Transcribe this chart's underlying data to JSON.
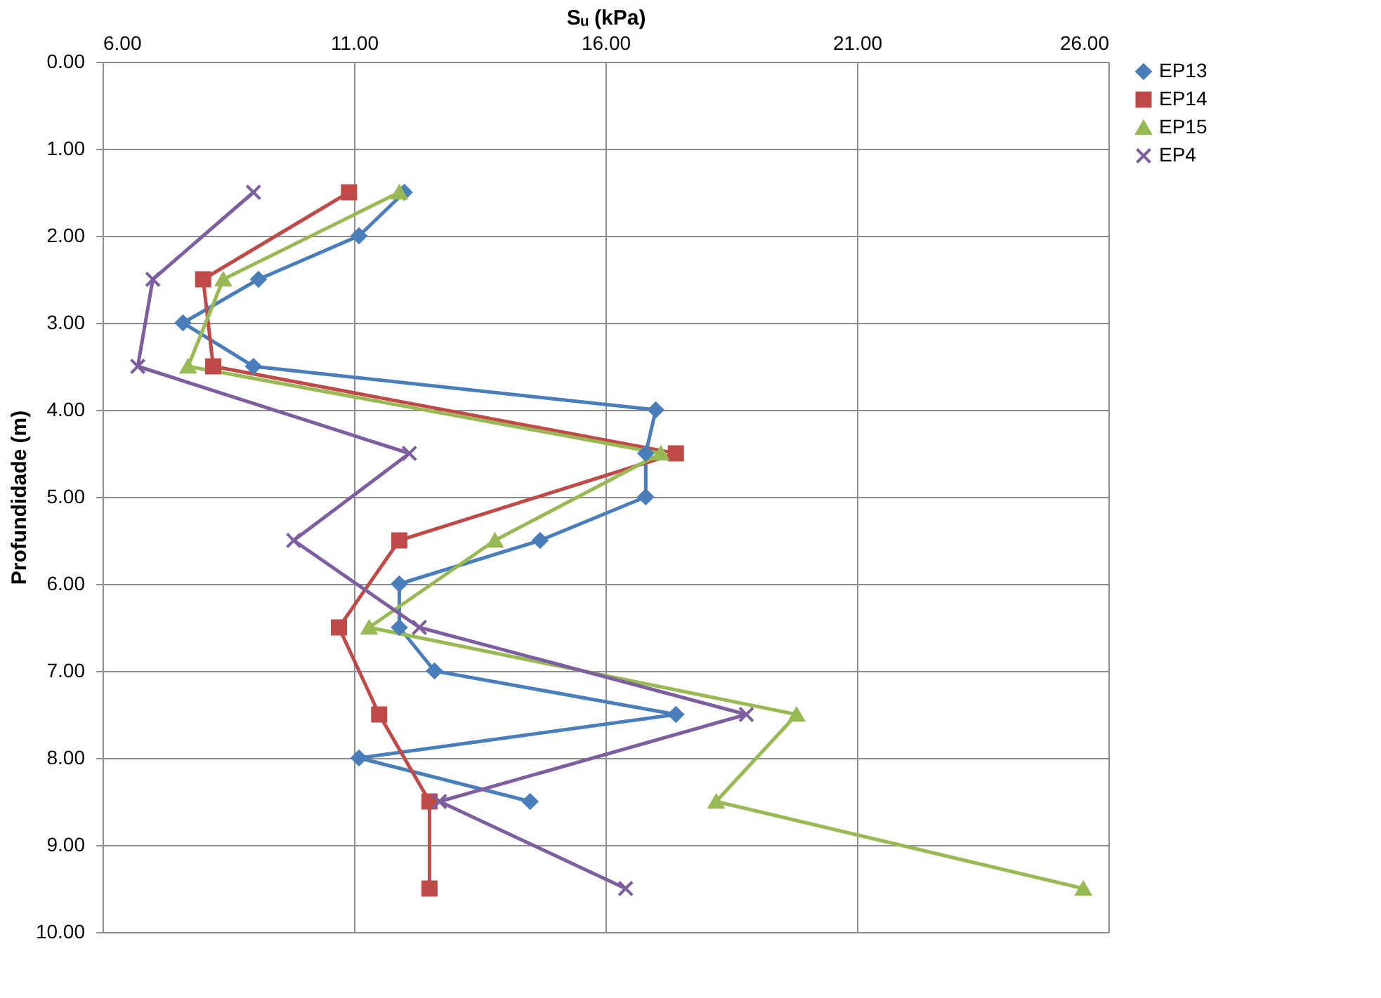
{
  "chart_data": {
    "type": "line",
    "xlabel": "Sᵤ (kPa)",
    "ylabel": "Profundidade (m)",
    "xlim": [
      6,
      26
    ],
    "xticks": [
      {
        "value": 6,
        "label": "6.00"
      },
      {
        "value": 11,
        "label": "11.00"
      },
      {
        "value": 16,
        "label": "16.00"
      },
      {
        "value": 21,
        "label": "21.00"
      },
      {
        "value": 26,
        "label": "26.00"
      }
    ],
    "ylim": [
      10,
      0
    ],
    "yticks": [
      {
        "value": 0,
        "label": "0.00"
      },
      {
        "value": 1,
        "label": "1.00"
      },
      {
        "value": 2,
        "label": "2.00"
      },
      {
        "value": 3,
        "label": "3.00"
      },
      {
        "value": 4,
        "label": "4.00"
      },
      {
        "value": 5,
        "label": "5.00"
      },
      {
        "value": 6,
        "label": "6.00"
      },
      {
        "value": 7,
        "label": "7.00"
      },
      {
        "value": 8,
        "label": "8.00"
      },
      {
        "value": 9,
        "label": "9.00"
      },
      {
        "value": 10,
        "label": "10.00"
      }
    ],
    "grid": true,
    "legend": "right",
    "line_style": "solid",
    "series": [
      {
        "name": "EP13",
        "color": "#4a7ebb",
        "marker": "diamond",
        "x": [
          12.0,
          11.1,
          9.1,
          7.6,
          9.0,
          17.0,
          16.8,
          16.8,
          14.7,
          11.9,
          11.9,
          12.6,
          17.4,
          11.1,
          14.5
        ],
        "values": [
          1.5,
          2.0,
          2.5,
          3.0,
          3.5,
          4.0,
          4.5,
          5.0,
          5.5,
          6.0,
          6.5,
          7.0,
          7.5,
          8.0,
          8.5
        ]
      },
      {
        "name": "EP14",
        "color": "#be4b48",
        "marker": "square",
        "x": [
          10.9,
          8.0,
          8.2,
          17.4,
          11.9,
          10.7,
          11.5,
          12.5,
          12.5
        ],
        "values": [
          1.5,
          2.5,
          3.5,
          4.5,
          5.5,
          6.5,
          7.5,
          8.5,
          9.5
        ]
      },
      {
        "name": "EP15",
        "color": "#98b954",
        "marker": "triangle",
        "x": [
          11.9,
          8.4,
          7.7,
          17.1,
          13.8,
          11.3,
          19.8,
          18.2,
          25.5
        ],
        "values": [
          1.5,
          2.5,
          3.5,
          4.5,
          5.5,
          6.5,
          7.5,
          8.5,
          9.5
        ]
      },
      {
        "name": "EP4",
        "color": "#7d5fa0",
        "marker": "cross",
        "x": [
          9.0,
          7.0,
          6.7,
          12.1,
          9.8,
          12.3,
          18.8,
          12.7,
          16.4
        ],
        "values": [
          1.5,
          2.5,
          3.5,
          4.5,
          5.5,
          6.5,
          7.5,
          8.5,
          9.5
        ]
      }
    ]
  }
}
